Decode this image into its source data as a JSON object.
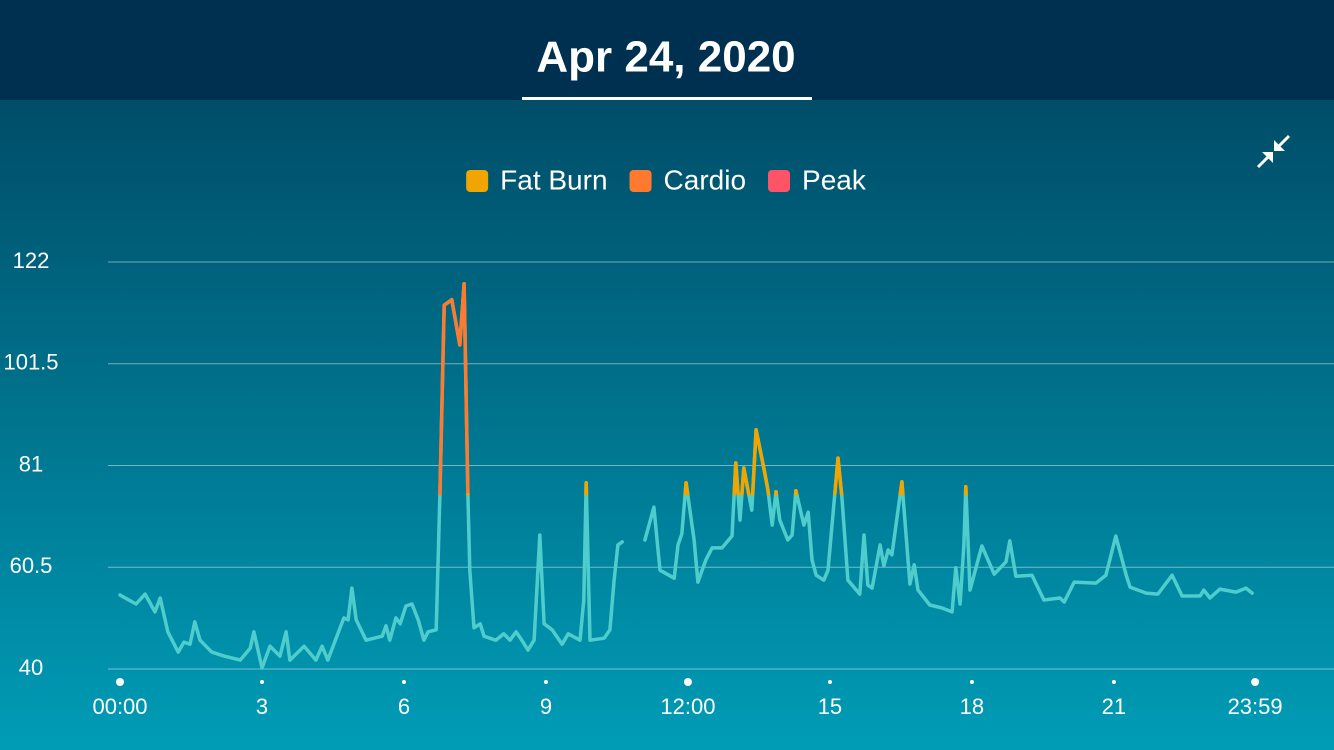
{
  "chart_data": {
    "type": "line",
    "title": "Apr 24, 2020",
    "zones": [
      {
        "name": "Fat Burn",
        "color": "#f0a500",
        "min": 75
      },
      {
        "name": "Cardio",
        "color": "#ff7a2e",
        "min": 100
      },
      {
        "name": "Peak",
        "color": "#ff5468"
      }
    ],
    "series": [
      {
        "color": "#4fcdcc",
        "x": [
          0,
          0.11,
          0.34,
          0.53,
          0.74,
          0.85,
          1.01,
          1.23,
          1.35,
          1.48,
          1.58,
          1.69,
          1.94,
          2.2,
          2.54,
          2.75,
          2.83,
          3.0,
          3.17,
          3.38,
          3.51,
          3.59,
          3.89,
          4.14,
          4.27,
          4.39,
          4.65,
          4.73,
          4.82,
          4.9,
          4.99,
          5.2,
          5.54,
          5.62,
          5.7,
          5.83,
          5.92,
          6.04,
          6.17,
          6.3,
          6.42,
          6.51,
          6.68,
          6.76,
          6.85,
          7.01,
          7.18,
          7.27,
          7.35,
          7.39,
          7.48,
          7.61,
          7.69,
          7.94,
          8.11,
          8.24,
          8.37,
          8.49,
          8.62,
          8.75,
          8.87,
          8.96,
          9.13,
          9.34,
          9.47,
          9.72,
          9.8,
          9.85,
          9.93,
          10.23,
          10.35,
          10.44,
          10.52,
          10.61,
          10.8,
          11.09,
          11.28,
          11.41,
          11.71,
          11.79,
          11.87,
          11.96,
          12.13,
          12.21,
          12.38,
          12.51,
          12.72,
          12.93,
          13.01,
          13.1,
          13.18,
          13.35,
          13.44,
          13.61,
          13.69,
          13.78,
          13.86,
          13.94,
          14.11,
          14.2,
          14.28,
          14.45,
          14.54,
          14.62,
          14.71,
          14.87,
          14.96,
          15.17,
          15.25,
          15.38,
          15.63,
          15.72,
          15.8,
          15.89,
          16.06,
          16.14,
          16.23,
          16.31,
          16.52,
          16.69,
          16.78,
          16.86,
          17.11,
          17.37,
          17.58,
          17.66,
          17.75,
          17.83,
          17.87,
          17.96,
          18.13,
          18.21,
          18.47,
          18.72,
          18.8,
          18.93,
          19.27,
          19.52,
          19.86,
          19.95,
          20.16,
          20.62,
          20.83,
          21.04,
          21.26,
          21.34,
          21.68,
          21.93,
          22.23,
          22.44,
          22.82,
          22.9,
          23.03,
          23.24,
          23.58,
          23.79,
          23.92
        ],
        "values": [
          54.9,
          54.3,
          53.1,
          55.1,
          51.5,
          54.3,
          47.5,
          43.4,
          45.4,
          45.0,
          49.5,
          45.8,
          43.4,
          42.6,
          41.8,
          44.2,
          47.5,
          40.2,
          44.6,
          42.6,
          47.5,
          41.8,
          44.6,
          41.8,
          44.6,
          41.8,
          48.3,
          50.3,
          49.9,
          56.3,
          49.9,
          45.8,
          46.6,
          48.7,
          45.8,
          50.3,
          49.1,
          52.7,
          53.1,
          49.9,
          45.8,
          47.5,
          47.9,
          75.1,
          113.3,
          114.4,
          105.3,
          117.6,
          75.1,
          59.9,
          48.3,
          49.1,
          46.6,
          45.8,
          47.1,
          45.8,
          47.5,
          45.8,
          43.8,
          45.8,
          67.0,
          49.1,
          47.9,
          45.0,
          47.1,
          45.8,
          53.9,
          77.5,
          45.8,
          46.2,
          47.9,
          57.9,
          65.0,
          65.6,
          null,
          66.0,
          72.6,
          59.9,
          58.3,
          65.0,
          67.2,
          77.5,
          66.0,
          57.5,
          62.0,
          64.4,
          64.4,
          66.8,
          81.5,
          70.0,
          80.5,
          72.0,
          88.2,
          80.1,
          76.1,
          69.0,
          75.7,
          70.0,
          66.0,
          67.0,
          75.9,
          69.0,
          71.6,
          62.0,
          58.9,
          57.9,
          59.9,
          82.5,
          74.9,
          57.9,
          55.1,
          67.0,
          56.9,
          56.3,
          65.0,
          60.8,
          64.0,
          63.0,
          77.7,
          57.1,
          61.0,
          55.9,
          52.9,
          52.3,
          51.5,
          60.4,
          53.1,
          65.0,
          76.7,
          55.9,
          62.0,
          64.8,
          59.1,
          61.6,
          65.8,
          58.7,
          58.9,
          53.9,
          54.3,
          53.5,
          57.5,
          57.3,
          58.9,
          66.8,
          58.9,
          56.5,
          55.3,
          55.1,
          58.9,
          54.7,
          54.7,
          55.9,
          54.3,
          56.1,
          55.5,
          56.3,
          55.3
        ]
      }
    ],
    "xlim": [
      0,
      23.983
    ],
    "xticks": [
      {
        "value": 0,
        "label": "00:00"
      },
      3,
      6,
      9,
      {
        "value": 12,
        "label": "12:00"
      },
      15,
      18,
      21,
      {
        "value": 23.983,
        "label": "23:59"
      }
    ],
    "ylim": [
      40,
      122
    ],
    "yticks": [
      40,
      60.5,
      81,
      101.5,
      122
    ],
    "grid": true
  }
}
